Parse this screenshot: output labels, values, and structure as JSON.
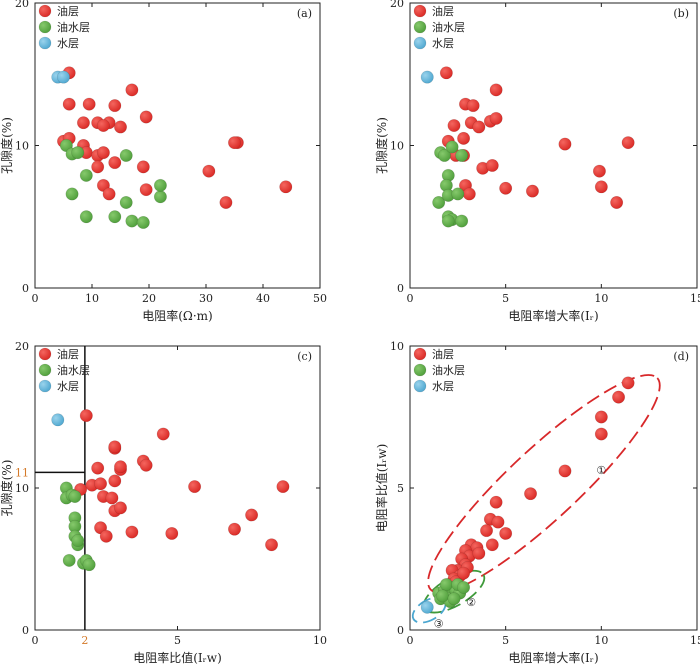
{
  "colors": {
    "oil": "#e0322e",
    "oil_water": "#5bae45",
    "water": "#61b6d9",
    "annot_red": "#d8282a",
    "annot_green": "#3f9a3a",
    "annot_blue": "#4aa6d0",
    "axis": "#222222",
    "orange": "#d47a2a"
  },
  "chart_data": [
    {
      "id": "a",
      "type": "scatter",
      "panel_label": "(a)",
      "xlabel": "电阻率(Ω·m)",
      "ylabel": "孔隙度(%)",
      "xlim": [
        0,
        50
      ],
      "ylim": [
        0,
        20
      ],
      "xticks": [
        "0",
        "10",
        "20",
        "30",
        "40",
        "50"
      ],
      "yticks": [
        "0",
        "10",
        "20"
      ],
      "legend": {
        "position": "top-left",
        "entries": [
          "油层",
          "油水层",
          "水层"
        ]
      },
      "series": [
        {
          "name": "油层",
          "color_key": "oil",
          "points": [
            [
              6,
              15.1
            ],
            [
              6,
              12.9
            ],
            [
              9.5,
              12.9
            ],
            [
              14,
              12.8
            ],
            [
              17,
              13.9
            ],
            [
              11,
              11.6
            ],
            [
              8.5,
              11.6
            ],
            [
              13,
              11.6
            ],
            [
              19.5,
              12
            ],
            [
              12,
              11.4
            ],
            [
              15,
              11.3
            ],
            [
              5,
              10.3
            ],
            [
              6,
              10.5
            ],
            [
              8.5,
              10
            ],
            [
              9,
              9.5
            ],
            [
              11,
              9.3
            ],
            [
              12,
              9.5
            ],
            [
              11,
              8.5
            ],
            [
              14,
              8.8
            ],
            [
              19,
              8.5
            ],
            [
              12,
              7.2
            ],
            [
              13,
              6.6
            ],
            [
              19.5,
              6.9
            ],
            [
              30.5,
              8.2
            ],
            [
              35.5,
              10.2
            ],
            [
              35,
              10.2
            ],
            [
              33.5,
              6
            ],
            [
              44,
              7.1
            ]
          ]
        },
        {
          "name": "油水层",
          "color_key": "oil_water",
          "points": [
            [
              5.5,
              10
            ],
            [
              6.5,
              9.4
            ],
            [
              7.5,
              9.5
            ],
            [
              9,
              7.9
            ],
            [
              16,
              9.3
            ],
            [
              6.5,
              6.6
            ],
            [
              9,
              5
            ],
            [
              14,
              5
            ],
            [
              16,
              6
            ],
            [
              17,
              4.7
            ],
            [
              19,
              4.6
            ],
            [
              22,
              6.4
            ],
            [
              22,
              7.2
            ]
          ]
        },
        {
          "name": "水层",
          "color_key": "water",
          "points": [
            [
              4,
              14.8
            ],
            [
              5,
              14.8
            ]
          ]
        }
      ]
    },
    {
      "id": "b",
      "type": "scatter",
      "panel_label": "(b)",
      "xlabel": "电阻率增大率(Iᵣ)",
      "ylabel": "孔隙度(%)",
      "xlim": [
        0,
        15
      ],
      "ylim": [
        0,
        20
      ],
      "xticks": [
        "0",
        "5",
        "10",
        "15"
      ],
      "yticks": [
        "0",
        "10",
        "20"
      ],
      "legend": {
        "position": "top-left",
        "entries": [
          "油层",
          "油水层",
          "水层"
        ]
      },
      "series": [
        {
          "name": "油层",
          "color_key": "oil",
          "points": [
            [
              1.9,
              15.1
            ],
            [
              2.9,
              12.9
            ],
            [
              3.3,
              12.8
            ],
            [
              4.5,
              13.9
            ],
            [
              2.3,
              11.4
            ],
            [
              3.2,
              11.6
            ],
            [
              3.6,
              11.3
            ],
            [
              4.2,
              11.7
            ],
            [
              4.5,
              11.9
            ],
            [
              2,
              10.3
            ],
            [
              2.8,
              10.5
            ],
            [
              2.4,
              9.3
            ],
            [
              2.8,
              9.3
            ],
            [
              3.8,
              8.4
            ],
            [
              4.3,
              8.6
            ],
            [
              2.9,
              7.2
            ],
            [
              3.1,
              6.6
            ],
            [
              5,
              7
            ],
            [
              6.4,
              6.8
            ],
            [
              8.1,
              10.1
            ],
            [
              9.9,
              8.2
            ],
            [
              11.4,
              10.2
            ],
            [
              10,
              7.1
            ],
            [
              10.8,
              6
            ]
          ]
        },
        {
          "name": "油水层",
          "color_key": "oil_water",
          "points": [
            [
              1.6,
              9.5
            ],
            [
              1.8,
              9.3
            ],
            [
              2.2,
              9.9
            ],
            [
              2.7,
              9.3
            ],
            [
              2,
              7.9
            ],
            [
              1.9,
              7.2
            ],
            [
              1.5,
              6
            ],
            [
              2,
              6.5
            ],
            [
              2.5,
              6.6
            ],
            [
              2,
              5
            ],
            [
              2.2,
              4.8
            ],
            [
              2.7,
              4.7
            ],
            [
              2,
              4.7
            ]
          ]
        },
        {
          "name": "水层",
          "color_key": "water",
          "points": [
            [
              0.9,
              14.8
            ]
          ]
        }
      ]
    },
    {
      "id": "c",
      "type": "scatter",
      "panel_label": "(c)",
      "xlabel": "电阻率比值(Iᵣw)",
      "ylabel": "孔隙度(%)",
      "xlim": [
        0,
        10
      ],
      "ylim": [
        0,
        20
      ],
      "xticks": [
        "0",
        "5",
        "10"
      ],
      "yticks": [
        "0",
        "10",
        "20"
      ],
      "guide": {
        "x": 1.75,
        "y": 11.1,
        "xlabel": "2",
        "ylabel": "11"
      },
      "legend": {
        "position": "top-left",
        "entries": [
          "油层",
          "油水层",
          "水层"
        ]
      },
      "series": [
        {
          "name": "油层",
          "color_key": "oil",
          "points": [
            [
              1.8,
              15.1
            ],
            [
              2.8,
              12.8
            ],
            [
              2.8,
              12.9
            ],
            [
              4.5,
              13.8
            ],
            [
              2.2,
              11.4
            ],
            [
              3,
              11.3
            ],
            [
              3,
              11.5
            ],
            [
              3.8,
              11.9
            ],
            [
              3.9,
              11.6
            ],
            [
              1.6,
              9.9
            ],
            [
              2,
              10.2
            ],
            [
              2.4,
              9.4
            ],
            [
              2.7,
              9.3
            ],
            [
              2.8,
              10.5
            ],
            [
              2.8,
              8.4
            ],
            [
              3,
              8.6
            ],
            [
              2.3,
              7.2
            ],
            [
              2.5,
              6.6
            ],
            [
              3.4,
              6.9
            ],
            [
              4.8,
              6.8
            ],
            [
              5.6,
              10.1
            ],
            [
              7.6,
              8.1
            ],
            [
              7,
              7.1
            ],
            [
              8.3,
              6
            ],
            [
              8.7,
              10.1
            ],
            [
              2.3,
              10.3
            ]
          ]
        },
        {
          "name": "油水层",
          "color_key": "oil_water",
          "points": [
            [
              1.1,
              10
            ],
            [
              1.1,
              9.3
            ],
            [
              1.3,
              9.5
            ],
            [
              1.4,
              9.4
            ],
            [
              1.4,
              7.9
            ],
            [
              1.4,
              7.3
            ],
            [
              1.4,
              6.6
            ],
            [
              1.5,
              6
            ],
            [
              1.2,
              4.9
            ],
            [
              1.7,
              4.7
            ],
            [
              1.8,
              4.9
            ],
            [
              1.9,
              4.6
            ],
            [
              1.5,
              6.3
            ]
          ]
        },
        {
          "name": "水层",
          "color_key": "water",
          "points": [
            [
              0.8,
              14.8
            ]
          ]
        }
      ]
    },
    {
      "id": "d",
      "type": "scatter",
      "panel_label": "(d)",
      "xlabel": "电阻率增大率(Iᵣ)",
      "ylabel": "电阻率比值(Iᵣw)",
      "xlim": [
        0,
        15
      ],
      "ylim": [
        0,
        10
      ],
      "xticks": [
        "0",
        "5",
        "10",
        "15"
      ],
      "yticks": [
        "0",
        "5",
        "10"
      ],
      "legend": {
        "position": "top-left",
        "entries": [
          "油层",
          "油水层",
          "水层"
        ]
      },
      "annotations": [
        "①",
        "②",
        "③"
      ],
      "series": [
        {
          "name": "油层",
          "color_key": "oil",
          "points": [
            [
              11.4,
              8.7
            ],
            [
              10.9,
              8.2
            ],
            [
              10,
              7.5
            ],
            [
              10,
              6.9
            ],
            [
              8.1,
              5.6
            ],
            [
              6.3,
              4.8
            ],
            [
              4.5,
              4.5
            ],
            [
              4.2,
              3.9
            ],
            [
              4.6,
              3.8
            ],
            [
              4,
              3.5
            ],
            [
              5,
              3.4
            ],
            [
              4.3,
              3
            ],
            [
              3.2,
              3
            ],
            [
              3.5,
              2.9
            ],
            [
              2.9,
              2.8
            ],
            [
              3.1,
              2.6
            ],
            [
              3.6,
              2.7
            ],
            [
              2.7,
              2.5
            ],
            [
              2.9,
              2.3
            ],
            [
              2.5,
              2.1
            ],
            [
              2.2,
              2.1
            ],
            [
              2.6,
              1.9
            ],
            [
              2.3,
              1.8
            ],
            [
              2,
              1.6
            ],
            [
              3,
              2.2
            ],
            [
              2.4,
              1.7
            ],
            [
              2.8,
              2
            ]
          ]
        },
        {
          "name": "油水层",
          "color_key": "oil_water",
          "points": [
            [
              1.5,
              1.3
            ],
            [
              1.8,
              1.4
            ],
            [
              2,
              1.2
            ],
            [
              2.2,
              1.5
            ],
            [
              2.4,
              1.4
            ],
            [
              1.6,
              1.1
            ],
            [
              1.9,
              1.6
            ],
            [
              2.6,
              1.3
            ],
            [
              2.1,
              1
            ],
            [
              1.7,
              1.2
            ],
            [
              2.5,
              1.6
            ],
            [
              2.3,
              1.1
            ],
            [
              2.8,
              1.5
            ]
          ]
        },
        {
          "name": "水层",
          "color_key": "water",
          "points": [
            [
              0.9,
              0.8
            ]
          ]
        }
      ]
    }
  ]
}
